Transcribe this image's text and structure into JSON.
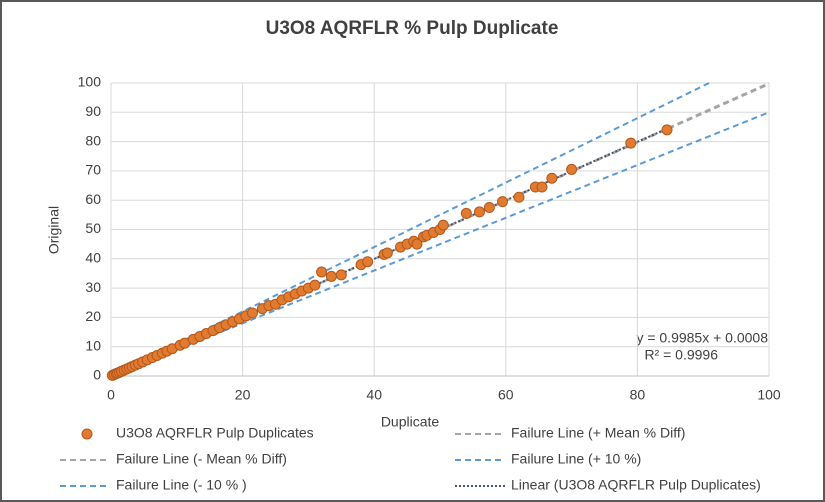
{
  "chart_data": {
    "type": "scatter",
    "title": "U3O8 AQRFLR %  Pulp Duplicate",
    "x_label": "Duplicate",
    "y_label": "Original",
    "xlim": [
      0,
      100
    ],
    "ylim": [
      0,
      100
    ],
    "xticks": [
      0,
      20,
      40,
      60,
      80,
      100
    ],
    "yticks": [
      0,
      10,
      20,
      30,
      40,
      50,
      60,
      70,
      80,
      90,
      100
    ],
    "grid": true,
    "annotations": [
      "y = 0.9985x + 0.0008",
      "R² = 0.9996"
    ],
    "series": [
      {
        "name": "U3O8 AQRFLR Pulp Duplicates",
        "kind": "points",
        "color": "#e07b30",
        "x": [
          0.2,
          0.5,
          0.8,
          1,
          1.3,
          1.6,
          2,
          2.4,
          2.8,
          3.2,
          3.7,
          4.2,
          4.8,
          5.5,
          6.3,
          7,
          7.8,
          8.5,
          9.3,
          10.5,
          11.2,
          12.5,
          13.5,
          14.5,
          15.5,
          16.5,
          17.5,
          18.5,
          19.5,
          20.5,
          21.5,
          23,
          24,
          25,
          26,
          27,
          28,
          29,
          30,
          31,
          32,
          33.5,
          35,
          38,
          39,
          41.5,
          42,
          44,
          45,
          46,
          46.5,
          47.5,
          48,
          49,
          50,
          50.5,
          54,
          56,
          57.5,
          59.5,
          62,
          64.5,
          65.5,
          67,
          70,
          79,
          84.5
        ],
        "values": [
          0.2,
          0.5,
          0.8,
          1,
          1.3,
          1.6,
          2,
          2.4,
          2.8,
          3.2,
          3.7,
          4.2,
          4.8,
          5.5,
          6.3,
          7,
          7.8,
          8.5,
          9.3,
          10.5,
          11.2,
          12.5,
          13.5,
          14.5,
          15.5,
          16.5,
          17.5,
          18.5,
          19.5,
          20.5,
          21.5,
          23,
          24,
          24.5,
          26,
          27,
          28,
          29,
          30,
          31,
          35.5,
          34,
          34.5,
          38,
          39,
          41.5,
          42,
          44,
          45,
          46,
          45,
          47.5,
          48,
          49,
          50,
          51.5,
          55.5,
          56,
          57.5,
          59.5,
          61,
          64.5,
          64.5,
          67.5,
          70.5,
          79.5,
          84
        ]
      },
      {
        "name": "Failure Line (+ Mean % Diff)",
        "kind": "line",
        "color": "#a5a5a5",
        "dash": "6 4",
        "x": [
          0,
          100
        ],
        "values": [
          0,
          100
        ]
      },
      {
        "name": "Failure Line (- Mean % Diff)",
        "kind": "line",
        "color": "#a5a5a5",
        "dash": "6 4",
        "x": [
          0,
          100
        ],
        "values": [
          0,
          99.6
        ]
      },
      {
        "name": "Failure Line (+ 10 %)",
        "kind": "line",
        "color": "#5b9bd5",
        "dash": "6 4",
        "x": [
          0,
          90.9
        ],
        "values": [
          0,
          100
        ]
      },
      {
        "name": "Failure Line (- 10 % )",
        "kind": "line",
        "color": "#5b9bd5",
        "dash": "6 4",
        "x": [
          0,
          100
        ],
        "values": [
          0,
          90
        ]
      },
      {
        "name": "Linear (U3O8 AQRFLR Pulp Duplicates)",
        "kind": "line",
        "color": "#44546a",
        "dash": "2 2",
        "x": [
          0,
          85
        ],
        "values": [
          0.0008,
          84.9
        ]
      }
    ]
  }
}
